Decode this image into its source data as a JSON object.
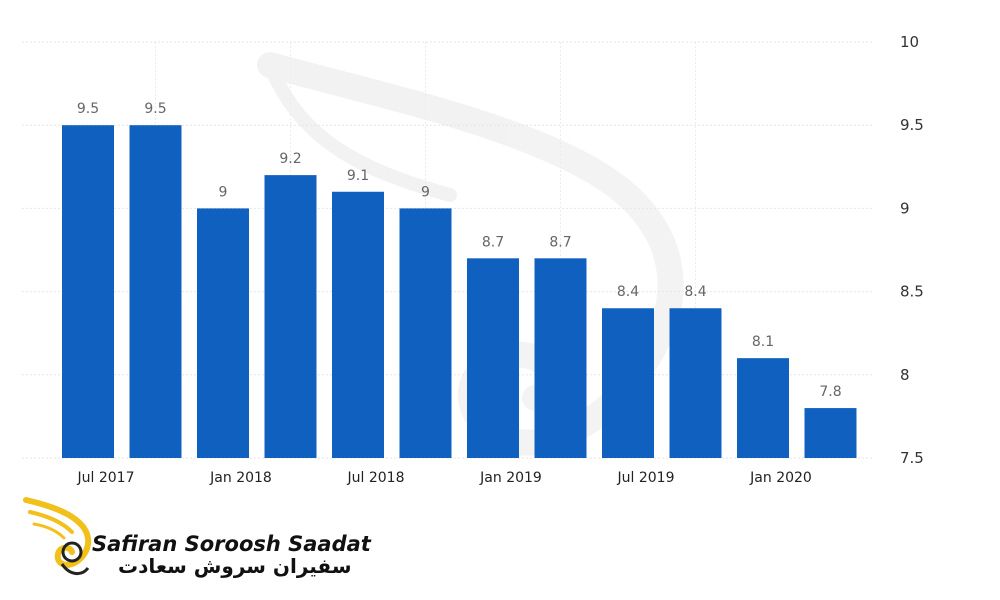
{
  "chart_data": {
    "type": "bar",
    "categories": [
      "Jul 2017",
      "Oct 2017",
      "Jan 2018",
      "Apr 2018",
      "Jul 2018",
      "Oct 2018",
      "Jan 2019",
      "Apr 2019",
      "Jul 2019",
      "Oct 2019",
      "Jan 2020",
      "Apr 2020"
    ],
    "values": [
      9.5,
      9.5,
      9,
      9.2,
      9.1,
      9,
      8.7,
      8.7,
      8.4,
      8.4,
      8.1,
      7.8
    ],
    "data_labels": [
      "9.5",
      "9.5",
      "9",
      "9.2",
      "9.1",
      "9",
      "8.7",
      "8.7",
      "8.4",
      "8.4",
      "8.1",
      "7.8"
    ],
    "x_tick_labels": [
      "Jul 2017",
      "Jan 2018",
      "Jul 2018",
      "Jan 2019",
      "Jul 2019",
      "Jan 2020"
    ],
    "y_ticks": [
      "10",
      "9.5",
      "9",
      "8.5",
      "8",
      "7.5"
    ],
    "ylim": [
      7.5,
      10
    ],
    "axis_position": "right",
    "bar_color": "#1060c0",
    "grid": true,
    "title": "",
    "xlabel": "",
    "ylabel": ""
  },
  "watermark": {
    "logo_text_en": "Safiran Soroosh Saadat",
    "logo_text_fa": "سفیران سروش سعادت",
    "logo_color": "#f2c01a"
  }
}
